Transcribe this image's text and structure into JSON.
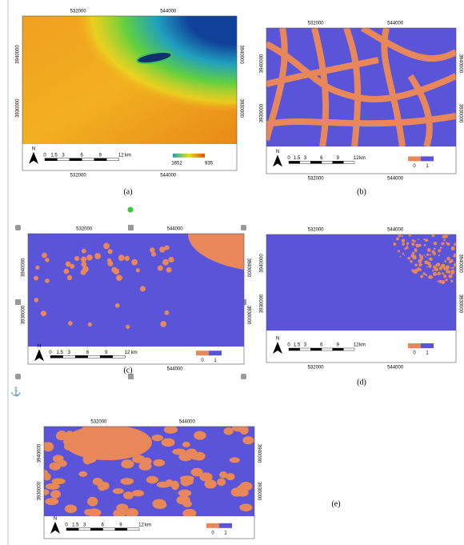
{
  "panels": [
    {
      "caption": "(a)",
      "top_x_labels": [
        "532000",
        "544000"
      ],
      "bottom_x_labels": [
        "532000",
        "544000"
      ],
      "left_y_labels": [
        "3940000",
        "3930000"
      ],
      "right_y_labels": [
        "3940000",
        "3930000"
      ],
      "scale_labels": [
        "0",
        "1.5",
        "3",
        "6",
        "9",
        "12",
        "km"
      ],
      "north": "N",
      "legend_labels": [
        "1652",
        "935"
      ]
    },
    {
      "caption": "(b)",
      "top_x_labels": [
        "532000",
        "544000"
      ],
      "bottom_x_labels": [
        "532000",
        "544000"
      ],
      "left_y_labels": [
        "3940000",
        "3930000"
      ],
      "right_y_labels": [
        "3940000",
        "3930000"
      ],
      "scale_labels": [
        "0",
        "1.5",
        "3",
        "6",
        "9",
        "12",
        "km"
      ],
      "north": "N",
      "legend_labels": [
        "0",
        "1"
      ]
    },
    {
      "caption": "(c)",
      "top_x_labels": [
        "532000",
        "544000"
      ],
      "bottom_x_labels": [
        "544000"
      ],
      "left_y_labels": [
        "3940000",
        "3930000"
      ],
      "right_y_labels": [
        "3940000",
        "3930000"
      ],
      "scale_labels": [
        "0",
        "1.5",
        "3",
        "6",
        "9",
        "12",
        "km"
      ],
      "north": "N",
      "legend_labels": [
        "0",
        "1"
      ]
    },
    {
      "caption": "(d)",
      "top_x_labels": [
        "532000",
        "544000"
      ],
      "bottom_x_labels": [
        "532000",
        "544000"
      ],
      "left_y_labels": [
        "3940000",
        "3930000"
      ],
      "right_y_labels": [
        "3940000",
        "3930000"
      ],
      "scale_labels": [
        "0",
        "1.5",
        "3",
        "6",
        "9",
        "12",
        "km"
      ],
      "north": "N",
      "legend_labels": [
        "0",
        "1"
      ]
    },
    {
      "caption": "(e)",
      "top_x_labels": [
        "532000",
        "544000"
      ],
      "bottom_x_labels": [],
      "left_y_labels": [
        "3940000",
        "3930000"
      ],
      "right_y_labels": [
        "3940000",
        "3930000"
      ],
      "scale_labels": [
        "0",
        "1.5",
        "3",
        "6",
        "9",
        "12",
        "km"
      ],
      "north": "N",
      "legend_labels": [
        "0",
        "1"
      ]
    }
  ]
}
